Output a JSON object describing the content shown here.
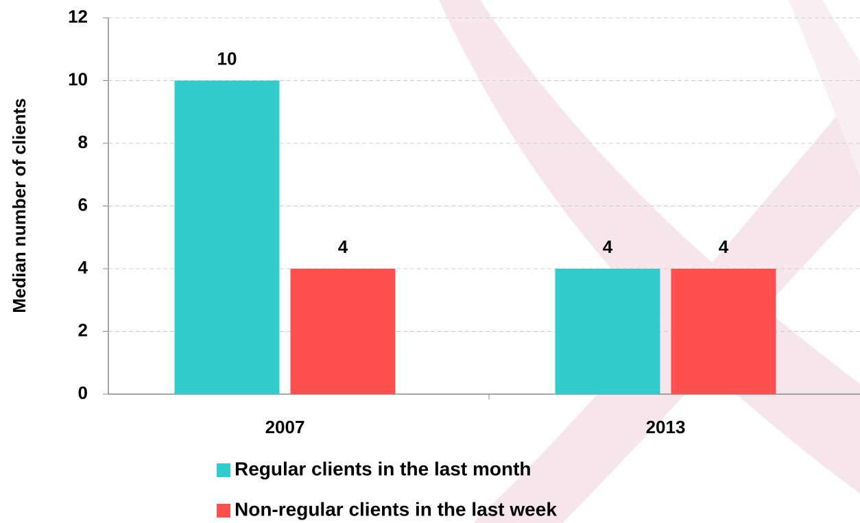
{
  "chart_data": {
    "type": "bar",
    "y_label": "Median number of clients",
    "categories": [
      "2007",
      "2013"
    ],
    "series": [
      {
        "name": "Regular clients in the last month",
        "color": "#33cccc",
        "values": [
          10,
          4
        ]
      },
      {
        "name": "Non-regular clients in the last week",
        "color": "#ff5050",
        "values": [
          4,
          4
        ]
      }
    ],
    "ylim": [
      0,
      12
    ],
    "yticks": [
      0,
      2,
      4,
      6,
      8,
      10,
      12
    ],
    "grid": true
  }
}
